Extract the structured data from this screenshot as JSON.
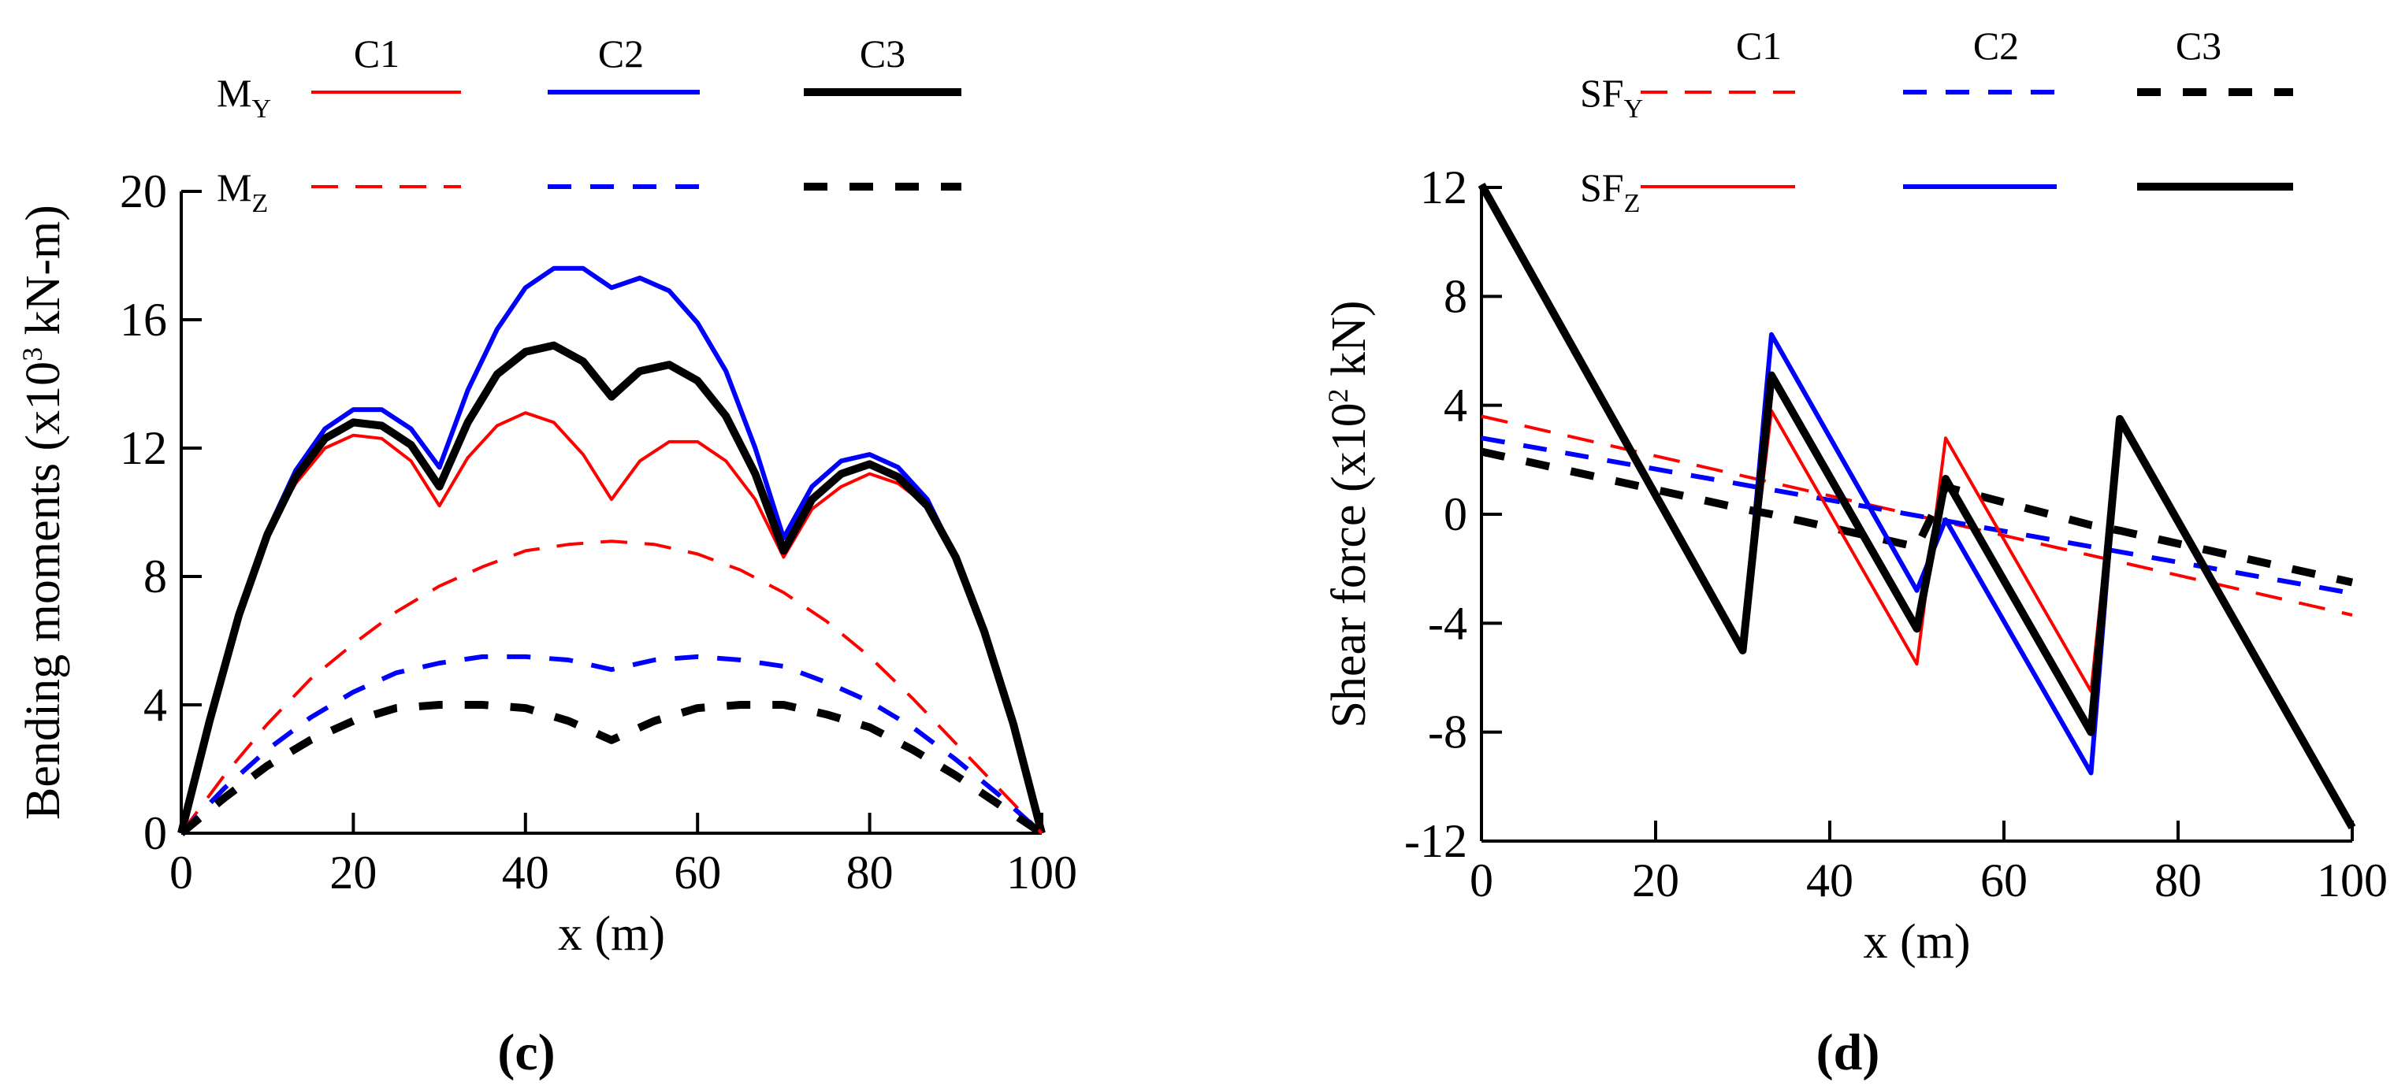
{
  "colors": {
    "c1": "#ff0000",
    "c2": "#0000ff",
    "c3": "#000000"
  },
  "chart_data": [
    {
      "type": "line",
      "panel_label": "(c)",
      "title": "",
      "xlabel": "x (m)",
      "ylabel": {
        "main": "Bending moments (x10",
        "sup": "3",
        "rest": " kN-m)"
      },
      "xlim": [
        0,
        100
      ],
      "ylim": [
        0,
        20
      ],
      "xticks": [
        0,
        20,
        40,
        60,
        80,
        100
      ],
      "yticks": [
        0,
        4,
        8,
        12,
        16,
        20
      ],
      "xtick_labels": [
        "0",
        "20",
        "40",
        "60",
        "80",
        "100"
      ],
      "ytick_labels": [
        "0",
        "4",
        "8",
        "12",
        "16",
        "20"
      ],
      "legend_headers": [
        "C1",
        "C2",
        "C3"
      ],
      "legend_rows": [
        {
          "main": "M",
          "sub": "Y",
          "dash": "solid"
        },
        {
          "main": "M",
          "sub": "Z",
          "dash": "dashed"
        }
      ],
      "series": [
        {
          "name": "MY C1",
          "color": "#ff0000",
          "dash": "solid",
          "weight": "thin",
          "x": [
            0,
            3.3,
            6.7,
            10,
            13.3,
            16.7,
            20,
            23.3,
            26.7,
            30,
            33.3,
            36.7,
            40,
            43.3,
            46.7,
            50,
            53.3,
            56.7,
            60,
            63.3,
            66.7,
            70,
            73.3,
            76.7,
            80,
            83.3,
            86.7,
            90,
            93.3,
            96.7,
            100
          ],
          "y": [
            0,
            3.5,
            6.8,
            9.3,
            10.9,
            12.0,
            12.4,
            12.3,
            11.6,
            10.2,
            11.7,
            12.7,
            13.1,
            12.8,
            11.8,
            10.4,
            11.6,
            12.2,
            12.2,
            11.6,
            10.4,
            8.6,
            10.1,
            10.8,
            11.2,
            10.9,
            10.2,
            8.6,
            6.3,
            3.4,
            0
          ]
        },
        {
          "name": "MY C2",
          "color": "#0000ff",
          "dash": "solid",
          "weight": "medium",
          "x": [
            0,
            3.3,
            6.7,
            10,
            13.3,
            16.7,
            20,
            23.3,
            26.7,
            30,
            33.3,
            36.7,
            40,
            43.3,
            46.7,
            50,
            53.3,
            56.7,
            60,
            63.3,
            66.7,
            70,
            73.3,
            76.7,
            80,
            83.3,
            86.7,
            90,
            93.3,
            96.7,
            100
          ],
          "y": [
            0,
            3.6,
            6.9,
            9.4,
            11.3,
            12.6,
            13.2,
            13.2,
            12.6,
            11.4,
            13.8,
            15.7,
            17.0,
            17.6,
            17.6,
            17.0,
            17.3,
            16.9,
            15.9,
            14.4,
            12.0,
            9.2,
            10.8,
            11.6,
            11.8,
            11.4,
            10.4,
            8.6,
            6.3,
            3.4,
            0
          ]
        },
        {
          "name": "MY C3",
          "color": "#000000",
          "dash": "solid",
          "weight": "thick",
          "x": [
            0,
            3.3,
            6.7,
            10,
            13.3,
            16.7,
            20,
            23.3,
            26.7,
            30,
            33.3,
            36.7,
            40,
            43.3,
            46.7,
            50,
            53.3,
            56.7,
            60,
            63.3,
            66.7,
            70,
            73.3,
            76.7,
            80,
            83.3,
            86.7,
            90,
            93.3,
            96.7,
            100
          ],
          "y": [
            0,
            3.5,
            6.8,
            9.3,
            11.1,
            12.3,
            12.8,
            12.7,
            12.1,
            10.8,
            12.8,
            14.3,
            15.0,
            15.2,
            14.7,
            13.6,
            14.4,
            14.6,
            14.1,
            13.0,
            11.2,
            8.8,
            10.4,
            11.2,
            11.5,
            11.1,
            10.2,
            8.6,
            6.3,
            3.4,
            0
          ]
        },
        {
          "name": "MZ C1",
          "color": "#ff0000",
          "dash": "dashed",
          "weight": "thin",
          "x": [
            0,
            5,
            10,
            15,
            20,
            25,
            30,
            35,
            40,
            45,
            50,
            55,
            60,
            65,
            70,
            75,
            80,
            85,
            90,
            95,
            100
          ],
          "y": [
            0,
            1.8,
            3.4,
            4.8,
            5.9,
            6.9,
            7.7,
            8.3,
            8.8,
            9.0,
            9.1,
            9.0,
            8.7,
            8.2,
            7.5,
            6.6,
            5.5,
            4.2,
            2.8,
            1.4,
            0
          ]
        },
        {
          "name": "MZ C2",
          "color": "#0000ff",
          "dash": "dashed",
          "weight": "medium",
          "x": [
            0,
            5,
            10,
            15,
            20,
            25,
            30,
            35,
            40,
            45,
            50,
            55,
            60,
            65,
            70,
            75,
            80,
            85,
            90,
            95,
            100
          ],
          "y": [
            0,
            1.4,
            2.6,
            3.6,
            4.4,
            5.0,
            5.3,
            5.5,
            5.5,
            5.4,
            5.1,
            5.4,
            5.5,
            5.4,
            5.2,
            4.7,
            4.1,
            3.3,
            2.3,
            1.2,
            0
          ]
        },
        {
          "name": "MZ C3",
          "color": "#000000",
          "dash": "dashed",
          "weight": "thick",
          "x": [
            0,
            5,
            10,
            15,
            20,
            25,
            30,
            35,
            40,
            45,
            50,
            55,
            60,
            65,
            70,
            75,
            80,
            85,
            90,
            95,
            100
          ],
          "y": [
            0,
            1.1,
            2.1,
            2.9,
            3.5,
            3.9,
            4.0,
            4.0,
            3.9,
            3.5,
            2.9,
            3.5,
            3.9,
            4.0,
            4.0,
            3.7,
            3.3,
            2.6,
            1.8,
            0.9,
            0
          ]
        }
      ]
    },
    {
      "type": "line",
      "panel_label": "(d)",
      "title": "",
      "xlabel": "x (m)",
      "ylabel": {
        "main": "Shear force (x10",
        "sup": "2",
        "rest": " kN)"
      },
      "xlim": [
        0,
        100
      ],
      "ylim": [
        -12,
        12
      ],
      "xticks": [
        0,
        20,
        40,
        60,
        80,
        100
      ],
      "yticks": [
        -12,
        -8,
        -4,
        0,
        4,
        8,
        12
      ],
      "xtick_labels": [
        "0",
        "20",
        "40",
        "60",
        "80",
        "100"
      ],
      "ytick_labels": [
        "-12",
        "-8",
        "-4",
        "0",
        "4",
        "8",
        "12"
      ],
      "legend_headers": [
        "C1",
        "C2",
        "C3"
      ],
      "legend_rows": [
        {
          "main": "SF",
          "sub": "Y",
          "dash": "dashed"
        },
        {
          "main": "SF",
          "sub": "Z",
          "dash": "solid"
        }
      ],
      "series": [
        {
          "name": "SFY C1",
          "color": "#ff0000",
          "dash": "dashed",
          "weight": "thin",
          "x": [
            0,
            100
          ],
          "y": [
            3.6,
            -3.7
          ]
        },
        {
          "name": "SFY C2",
          "color": "#0000ff",
          "dash": "dashed",
          "weight": "medium",
          "x": [
            0,
            100
          ],
          "y": [
            2.8,
            -2.9
          ]
        },
        {
          "name": "SFY C3",
          "color": "#000000",
          "dash": "dashed",
          "weight": "thick",
          "x": [
            0,
            30,
            33.3,
            50,
            53.3,
            70,
            73.3,
            100
          ],
          "y": [
            2.3,
            0.2,
            0,
            -1.2,
            1.0,
            -0.4,
            -0.6,
            -2.5
          ]
        },
        {
          "name": "SFZ C1",
          "color": "#ff0000",
          "dash": "solid",
          "weight": "thin",
          "x": [
            0,
            30,
            33.3,
            50,
            53.3,
            70,
            73.3,
            100
          ],
          "y": [
            12.1,
            -5.0,
            3.8,
            -5.5,
            2.8,
            -6.5,
            3.5,
            -11.5
          ]
        },
        {
          "name": "SFZ C2",
          "color": "#0000ff",
          "dash": "solid",
          "weight": "medium",
          "x": [
            0,
            30,
            33.3,
            50,
            53.3,
            70,
            73.3,
            100
          ],
          "y": [
            12.1,
            -5.0,
            6.6,
            -2.8,
            -0.2,
            -9.5,
            3.5,
            -11.5
          ]
        },
        {
          "name": "SFZ C3",
          "color": "#000000",
          "dash": "solid",
          "weight": "thick",
          "x": [
            0,
            30,
            33.3,
            50,
            53.3,
            70,
            73.3,
            100
          ],
          "y": [
            12.1,
            -5.0,
            5.1,
            -4.2,
            1.3,
            -8.0,
            3.5,
            -11.5
          ]
        }
      ]
    }
  ]
}
